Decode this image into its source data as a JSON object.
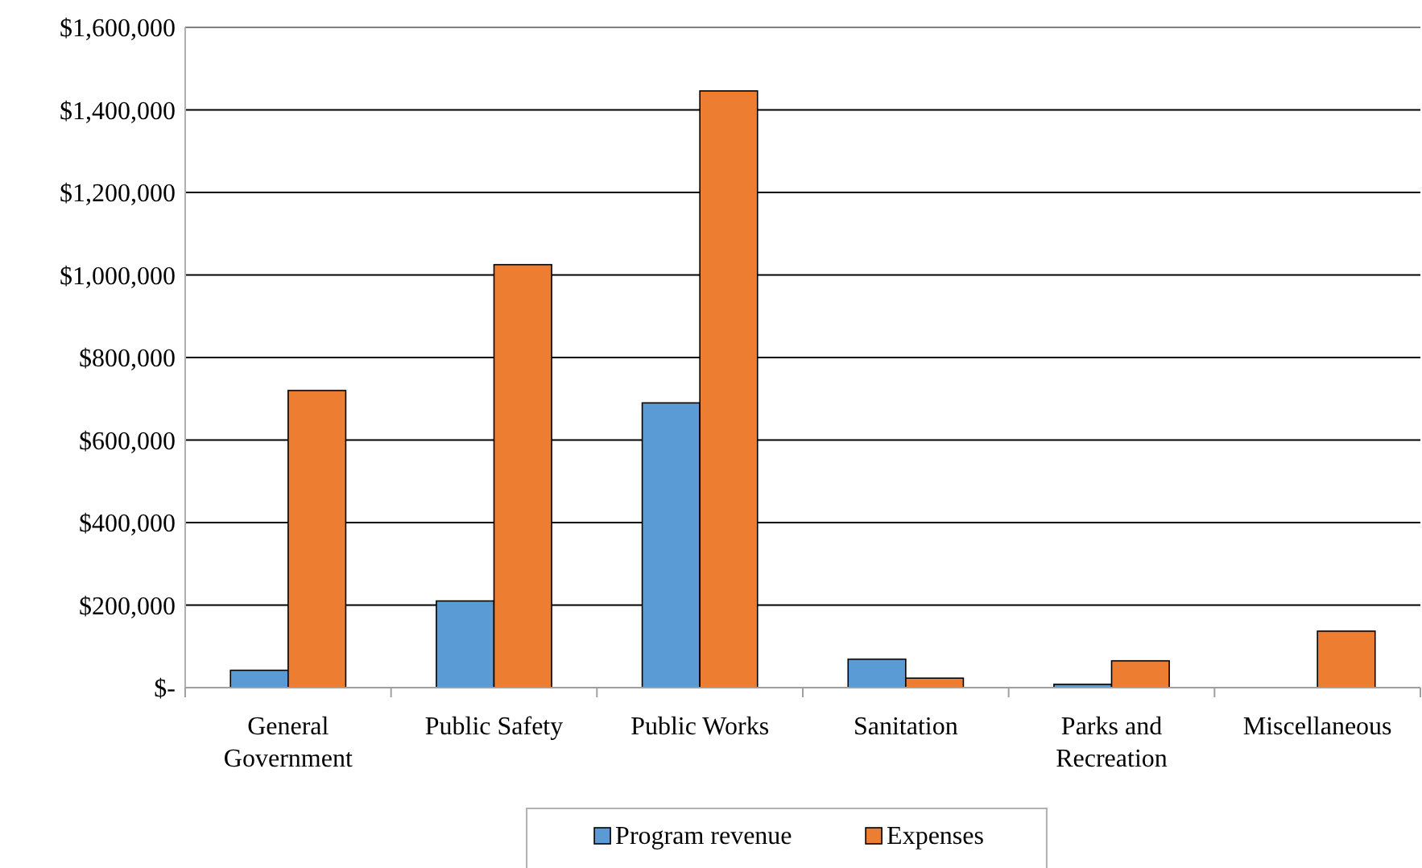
{
  "chart_data": {
    "type": "bar",
    "categories": [
      "General Government",
      "Public Safety",
      "Public Works",
      "Sanitation",
      "Parks and Recreation",
      "Miscellaneous"
    ],
    "series": [
      {
        "name": "Program revenue",
        "color": "#5b9bd5",
        "values": [
          42000,
          210000,
          690000,
          69000,
          8000,
          0
        ]
      },
      {
        "name": "Expenses",
        "color": "#ed7d31",
        "values": [
          720000,
          1025000,
          1446000,
          23000,
          65000,
          137000
        ]
      }
    ],
    "ylim": [
      0,
      1600000
    ],
    "yticks": [
      {
        "value": 0,
        "label": "$-"
      },
      {
        "value": 200000,
        "label": "$200,000"
      },
      {
        "value": 400000,
        "label": "$400,000"
      },
      {
        "value": 600000,
        "label": "$600,000"
      },
      {
        "value": 800000,
        "label": "$800,000"
      },
      {
        "value": 1000000,
        "label": "$1,000,000"
      },
      {
        "value": 1200000,
        "label": "$1,200,000"
      },
      {
        "value": 1400000,
        "label": "$1,400,000"
      },
      {
        "value": 1600000,
        "label": "$1,600,000"
      }
    ],
    "grid": "y",
    "legend": "bottom"
  }
}
